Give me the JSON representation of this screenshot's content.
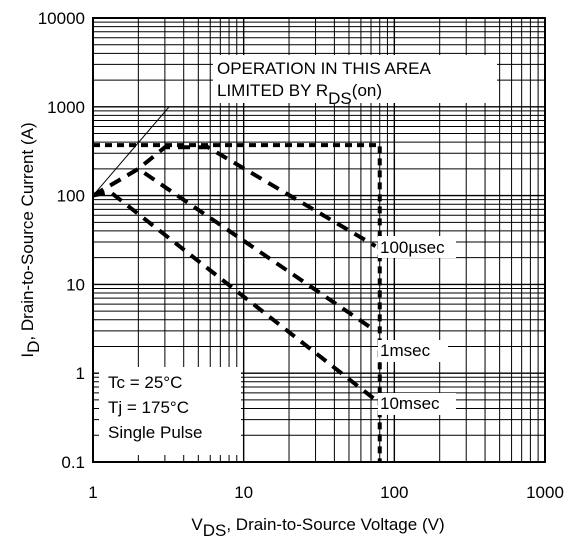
{
  "chart_data": {
    "type": "line",
    "x_scale": "log",
    "y_scale": "log",
    "xlim": [
      1,
      1000
    ],
    "ylim": [
      0.1,
      10000
    ],
    "grid": true,
    "xlabel": {
      "main": "V",
      "sub": "DS",
      "rest": ", Drain-to-Source Voltage (V)"
    },
    "ylabel": {
      "main": "I",
      "sub": "D",
      "rest": ",  Drain-to-Source Current (A)"
    },
    "x_tick_labels": [
      "1",
      "10",
      "100",
      "1000"
    ],
    "y_tick_labels": [
      "0.1",
      "1",
      "10",
      "100",
      "1000",
      "10000"
    ],
    "annotation": {
      "line1": "OPERATION IN THIS AREA",
      "line2_main": "LIMITED BY R",
      "line2_sub": "DS",
      "line2_rest": "(on)"
    },
    "conditions": [
      "Tc = 25°C",
      "Tj = 175°C",
      "Single Pulse"
    ],
    "rds_limit_line": {
      "x": [
        1,
        3.2
      ],
      "y": [
        100,
        1000
      ]
    },
    "series": [
      {
        "name": "100µsec",
        "x": [
          1,
          2.0,
          3.0,
          5.8,
          75
        ],
        "y": [
          100,
          200,
          350,
          350,
          27
        ]
      },
      {
        "name": "1msec",
        "x": [
          1,
          1.5,
          2.0,
          75
        ],
        "y": [
          100,
          150,
          200,
          3
        ]
      },
      {
        "name": "10msec",
        "x": [
          1,
          1.3,
          75
        ],
        "y": [
          100,
          110,
          0.5
        ]
      },
      {
        "name": "",
        "role": "boundary",
        "x": [
          1,
          80,
          80
        ],
        "y": [
          370,
          370,
          0.1
        ]
      }
    ]
  }
}
